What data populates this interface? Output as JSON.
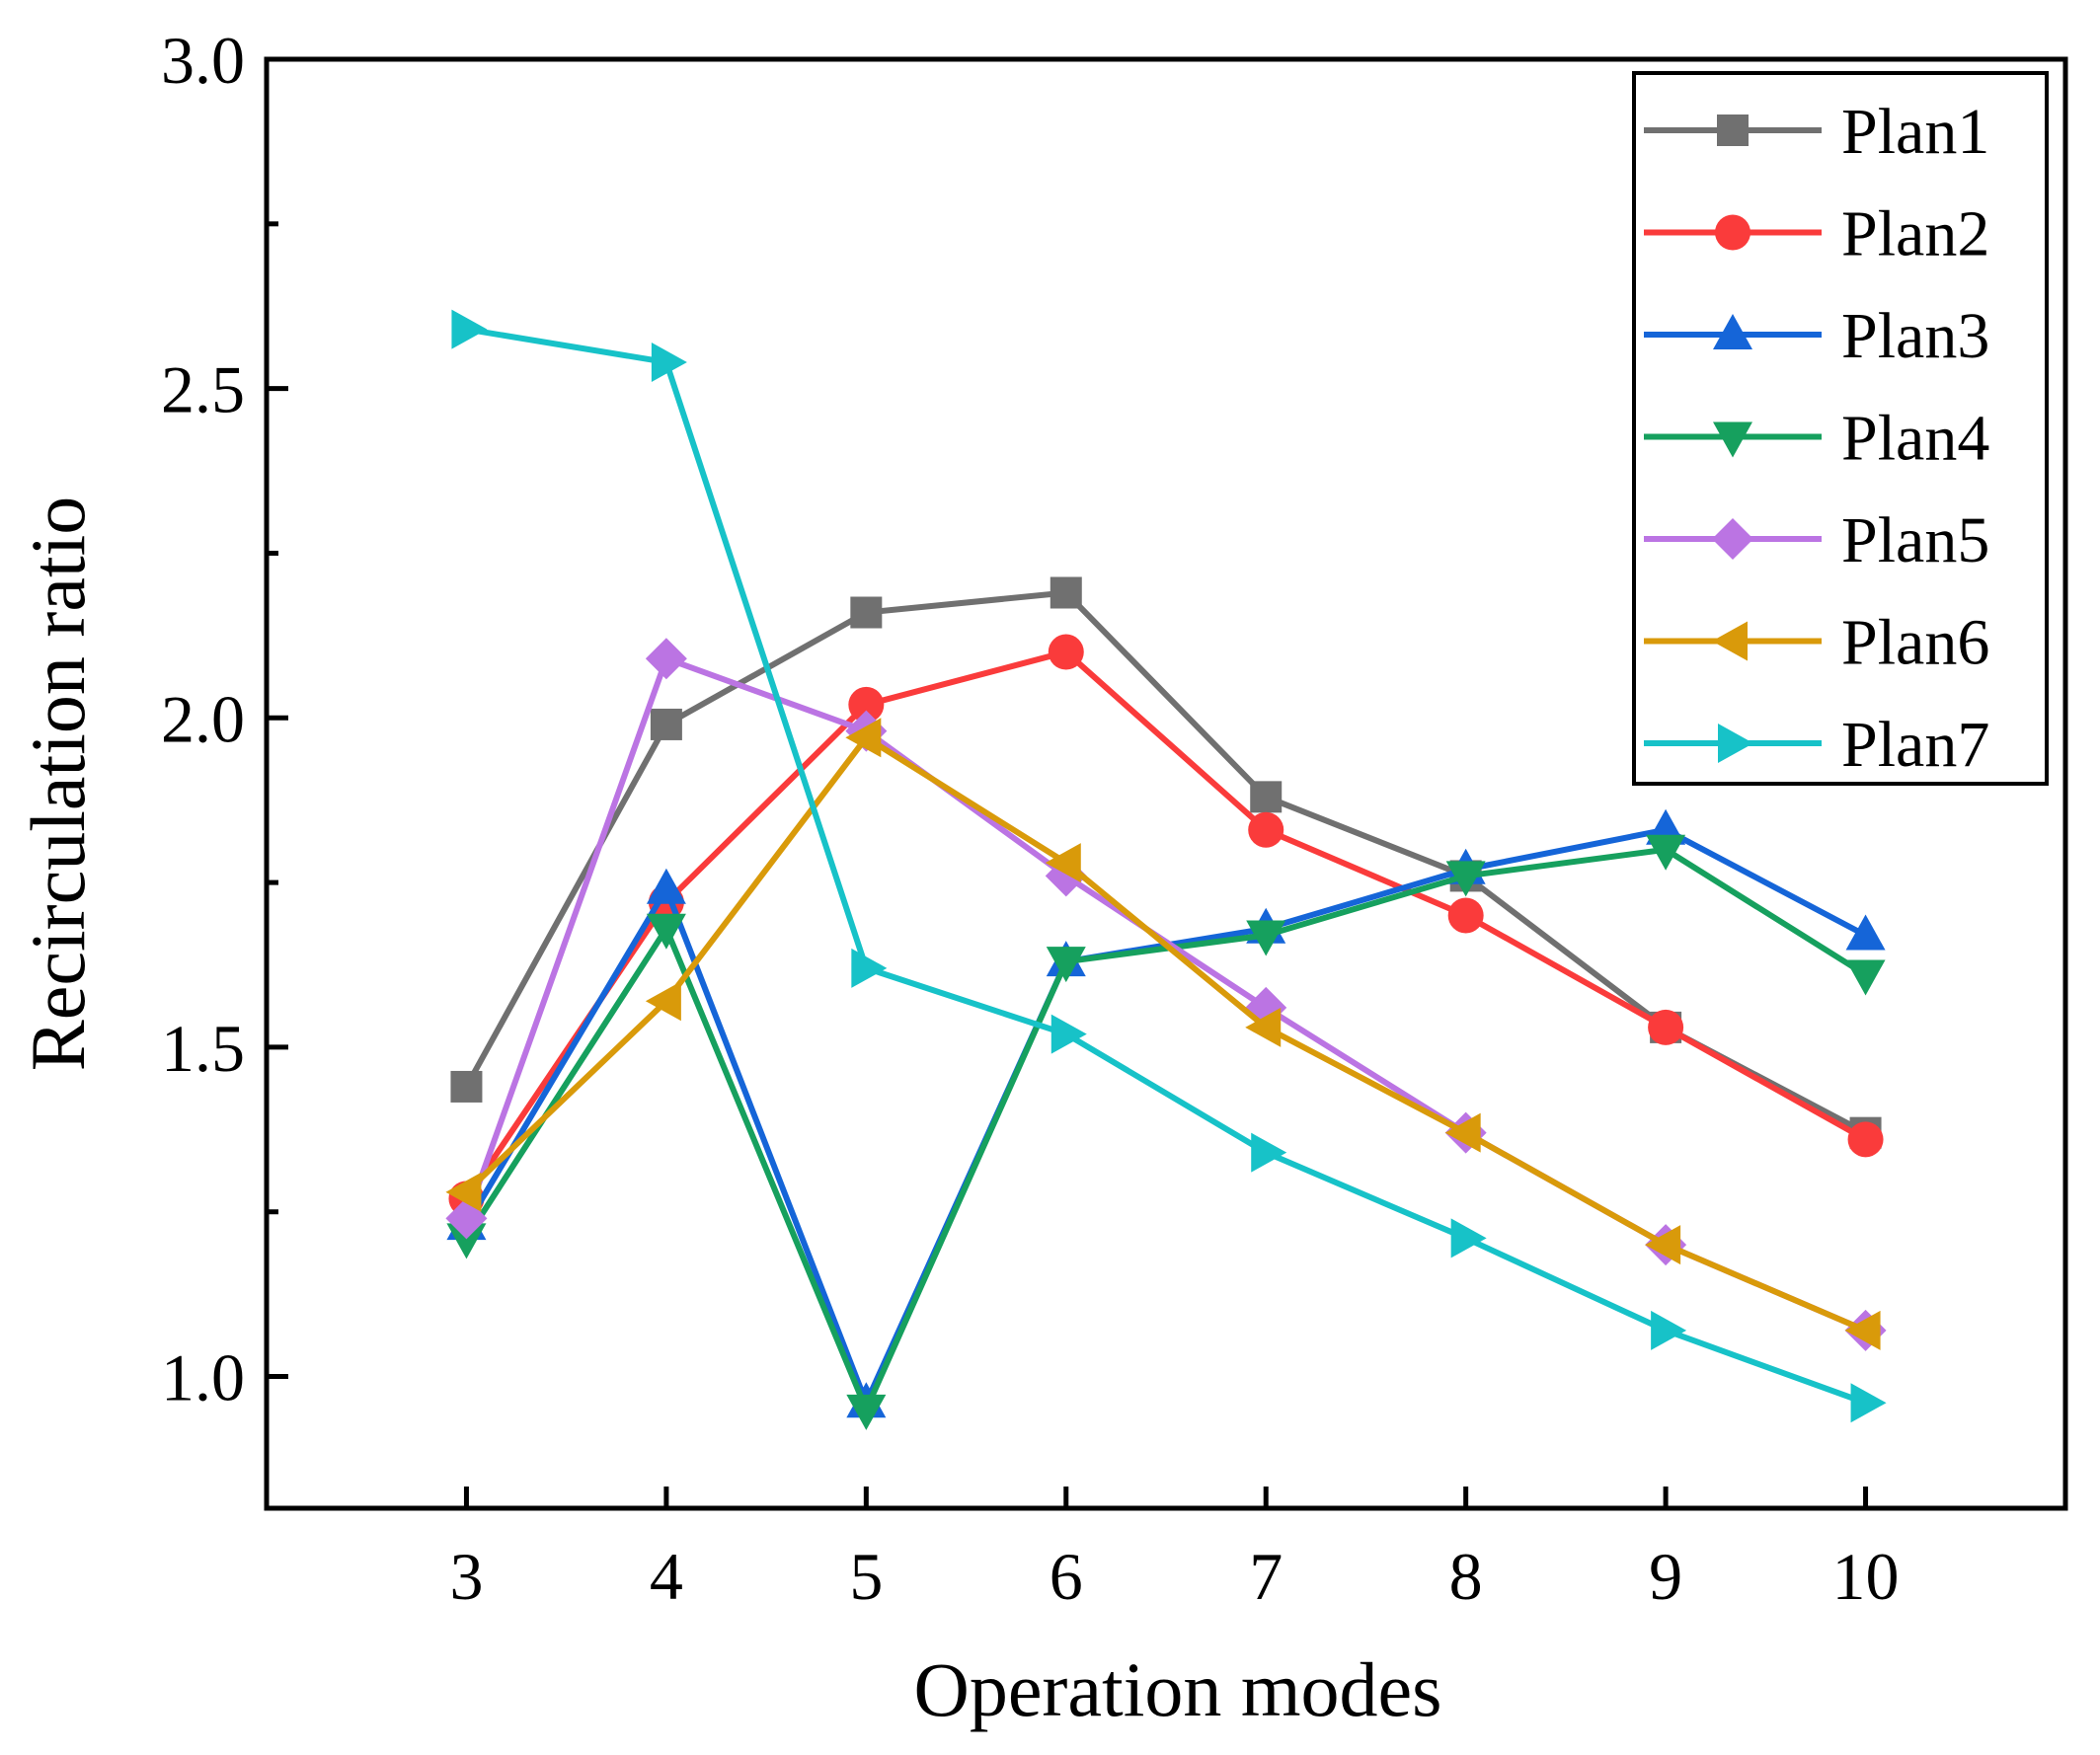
{
  "chart_data": {
    "type": "line",
    "title": "",
    "xlabel": "Operation modes",
    "ylabel": "Recirculation ratio",
    "categories": [
      3,
      4,
      5,
      6,
      7,
      8,
      9,
      10
    ],
    "xlim": [
      2,
      11
    ],
    "ylim": [
      0.8,
      3.0
    ],
    "yticks": [
      "1.0",
      "1.5",
      "2.0",
      "2.5",
      "3.0"
    ],
    "xticks": [
      "3",
      "4",
      "5",
      "6",
      "7",
      "8",
      "9",
      "10"
    ],
    "grid": false,
    "legend_position": "top-right",
    "series": [
      {
        "name": "Plan1",
        "color": "#707070",
        "marker": "square",
        "values": [
          1.44,
          1.99,
          2.16,
          2.19,
          1.88,
          1.76,
          1.53,
          1.37
        ]
      },
      {
        "name": "Plan2",
        "color": "#fa3b3b",
        "marker": "circle",
        "values": [
          1.27,
          1.72,
          2.02,
          2.1,
          1.83,
          1.7,
          1.53,
          1.36
        ]
      },
      {
        "name": "Plan3",
        "color": "#1565d8",
        "marker": "triangle-up",
        "values": [
          1.23,
          1.74,
          0.96,
          1.63,
          1.68,
          1.77,
          1.83,
          1.67
        ]
      },
      {
        "name": "Plan4",
        "color": "#16a05e",
        "marker": "triangle-down",
        "values": [
          1.21,
          1.68,
          0.95,
          1.63,
          1.67,
          1.76,
          1.8,
          1.61
        ]
      },
      {
        "name": "Plan5",
        "color": "#bb74e3",
        "marker": "diamond",
        "values": [
          1.24,
          2.09,
          1.98,
          1.76,
          1.56,
          1.37,
          1.2,
          1.07
        ]
      },
      {
        "name": "Plan6",
        "color": "#d99a0a",
        "marker": "triangle-left",
        "values": [
          1.28,
          1.57,
          1.97,
          1.78,
          1.53,
          1.37,
          1.2,
          1.07
        ]
      },
      {
        "name": "Plan7",
        "color": "#17c2c8",
        "marker": "triangle-right",
        "values": [
          2.59,
          2.54,
          1.62,
          1.52,
          1.34,
          1.21,
          1.07,
          0.96
        ]
      }
    ]
  }
}
